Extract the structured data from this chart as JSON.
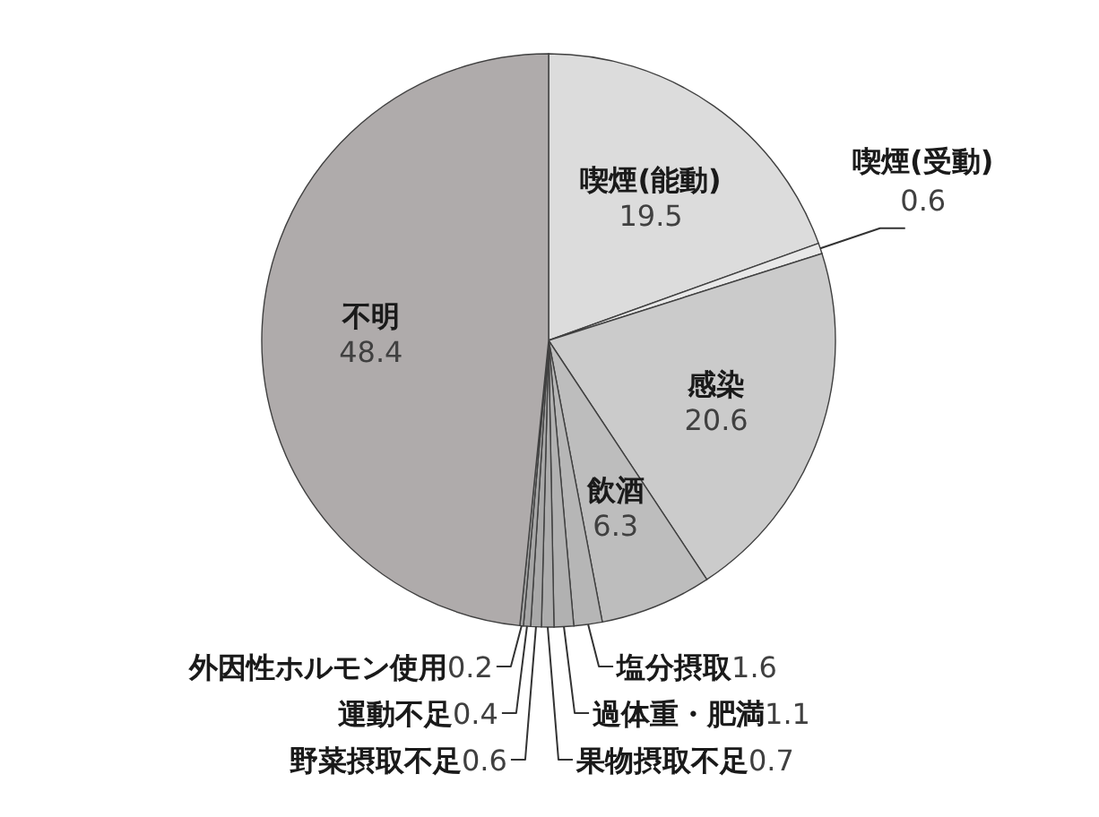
{
  "chart_data": {
    "type": "pie",
    "categories": [
      "喫煙(能動)",
      "喫煙(受動)",
      "感染",
      "飲酒",
      "塩分摂取",
      "過体重・肥満",
      "果物摂取不足",
      "野菜摂取不足",
      "運動不足",
      "外因性ホルモン使用",
      "不明"
    ],
    "values": [
      19.5,
      0.6,
      20.6,
      6.3,
      1.6,
      1.1,
      0.7,
      0.6,
      0.4,
      0.2,
      48.4
    ],
    "colors": [
      "#dcdcdc",
      "#e8e8e8",
      "#cbcbcb",
      "#bdbdbd",
      "#b6b6b6",
      "#b1b1b1",
      "#adadad",
      "#a9a9a9",
      "#a6a6a6",
      "#a3a3a3",
      "#afabab"
    ],
    "data_labels": true
  }
}
